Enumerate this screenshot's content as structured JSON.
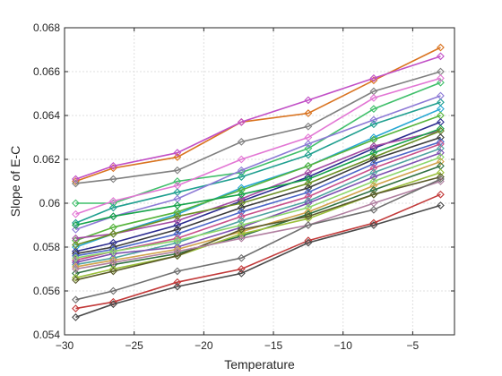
{
  "chart_data": {
    "type": "line",
    "title": "",
    "xlabel": "Temperature",
    "ylabel": "Slope of E-C",
    "xlim": [
      -30,
      -2
    ],
    "ylim": [
      0.054,
      0.068
    ],
    "grid": true,
    "legend": "none",
    "marker": "diamond",
    "x": [
      -29.2,
      -26.5,
      -21.9,
      -17.3,
      -12.5,
      -7.8,
      -3.0
    ],
    "xticks": [
      -30,
      -25,
      -20,
      -15,
      -10,
      -5
    ],
    "xtick_labels": [
      "−30",
      "−25",
      "−20",
      "−15",
      "−10",
      "−5"
    ],
    "yticks": [
      0.054,
      0.056,
      0.058,
      0.06,
      0.062,
      0.064,
      0.066,
      0.068
    ],
    "ytick_labels": [
      "0.054",
      "0.056",
      "0.058",
      "0.06",
      "0.062",
      "0.064",
      "0.066",
      "0.068"
    ],
    "series": [
      {
        "color": "#d9731f",
        "values": [
          0.061,
          0.0616,
          0.0621,
          0.0637,
          0.0641,
          0.0656,
          0.0671
        ]
      },
      {
        "color": "#c14fc6",
        "values": [
          0.0611,
          0.0617,
          0.0623,
          0.0637,
          0.0647,
          0.0657,
          0.0667
        ]
      },
      {
        "color": "#7f7f7f",
        "values": [
          0.0609,
          0.0611,
          0.0615,
          0.0628,
          0.0635,
          0.0651,
          0.066
        ]
      },
      {
        "color": "#3fbf6a",
        "values": [
          0.06,
          0.06,
          0.061,
          0.0614,
          0.0625,
          0.0643,
          0.0655
        ]
      },
      {
        "color": "#e276d4",
        "values": [
          0.0595,
          0.0601,
          0.0608,
          0.062,
          0.063,
          0.0648,
          0.0657
        ]
      },
      {
        "color": "#1f9f8f",
        "values": [
          0.0591,
          0.0598,
          0.0605,
          0.0612,
          0.0622,
          0.0636,
          0.0646
        ]
      },
      {
        "color": "#8d7ad6",
        "values": [
          0.0588,
          0.0594,
          0.0602,
          0.0615,
          0.0627,
          0.0638,
          0.0649
        ]
      },
      {
        "color": "#27a7d2",
        "values": [
          0.058,
          0.0586,
          0.0595,
          0.0607,
          0.0617,
          0.063,
          0.0643
        ]
      },
      {
        "color": "#55b33b",
        "values": [
          0.0583,
          0.0589,
          0.0596,
          0.0606,
          0.0617,
          0.0629,
          0.064
        ]
      },
      {
        "color": "#2c2c8f",
        "values": [
          0.0578,
          0.0582,
          0.059,
          0.0601,
          0.0612,
          0.0625,
          0.0637
        ]
      },
      {
        "color": "#a34aa3",
        "values": [
          0.0584,
          0.0586,
          0.0592,
          0.0602,
          0.0614,
          0.0626,
          0.0633
        ]
      },
      {
        "color": "#16a34a",
        "values": [
          0.059,
          0.0594,
          0.0599,
          0.0604,
          0.0611,
          0.0623,
          0.0634
        ]
      },
      {
        "color": "#6b8e23",
        "values": [
          0.0581,
          0.0586,
          0.0594,
          0.06,
          0.0609,
          0.0621,
          0.0633
        ]
      },
      {
        "color": "#3b3b3b",
        "values": [
          0.0577,
          0.058,
          0.0588,
          0.0598,
          0.0607,
          0.062,
          0.063
        ]
      },
      {
        "color": "#4b66c8",
        "values": [
          0.0576,
          0.0579,
          0.0586,
          0.0596,
          0.0605,
          0.0618,
          0.0628
        ]
      },
      {
        "color": "#c8508a",
        "values": [
          0.0574,
          0.0578,
          0.0584,
          0.0594,
          0.0603,
          0.0616,
          0.0627
        ]
      },
      {
        "color": "#4fa3a0",
        "values": [
          0.0572,
          0.0575,
          0.0582,
          0.0592,
          0.0601,
          0.0614,
          0.0625
        ]
      },
      {
        "color": "#7c4fb0",
        "values": [
          0.0573,
          0.0577,
          0.058,
          0.0589,
          0.06,
          0.0612,
          0.0623
        ]
      },
      {
        "color": "#8bd66a",
        "values": [
          0.0575,
          0.0578,
          0.0583,
          0.059,
          0.0598,
          0.061,
          0.0621
        ]
      },
      {
        "color": "#d1a24a",
        "values": [
          0.0571,
          0.0574,
          0.0579,
          0.0587,
          0.0596,
          0.0608,
          0.0619
        ]
      },
      {
        "color": "#2f6f3f",
        "values": [
          0.0568,
          0.0572,
          0.0577,
          0.0585,
          0.0595,
          0.0606,
          0.0617
        ]
      },
      {
        "color": "#9bbf3a",
        "values": [
          0.0566,
          0.057,
          0.0576,
          0.0586,
          0.0593,
          0.0604,
          0.0614
        ]
      },
      {
        "color": "#5a5a2a",
        "values": [
          0.0565,
          0.0569,
          0.0576,
          0.0588,
          0.0594,
          0.0604,
          0.0612
        ]
      },
      {
        "color": "#b07fa0",
        "values": [
          0.057,
          0.0573,
          0.0578,
          0.0584,
          0.059,
          0.06,
          0.061
        ]
      },
      {
        "color": "#6f6f6f",
        "values": [
          0.0556,
          0.056,
          0.0569,
          0.0575,
          0.059,
          0.0597,
          0.0611
        ]
      },
      {
        "color": "#c23a3a",
        "values": [
          0.0552,
          0.0555,
          0.0564,
          0.057,
          0.0583,
          0.0591,
          0.0604
        ]
      },
      {
        "color": "#4a4a4a",
        "values": [
          0.0548,
          0.0554,
          0.0562,
          0.0568,
          0.0582,
          0.059,
          0.0599
        ]
      }
    ]
  }
}
